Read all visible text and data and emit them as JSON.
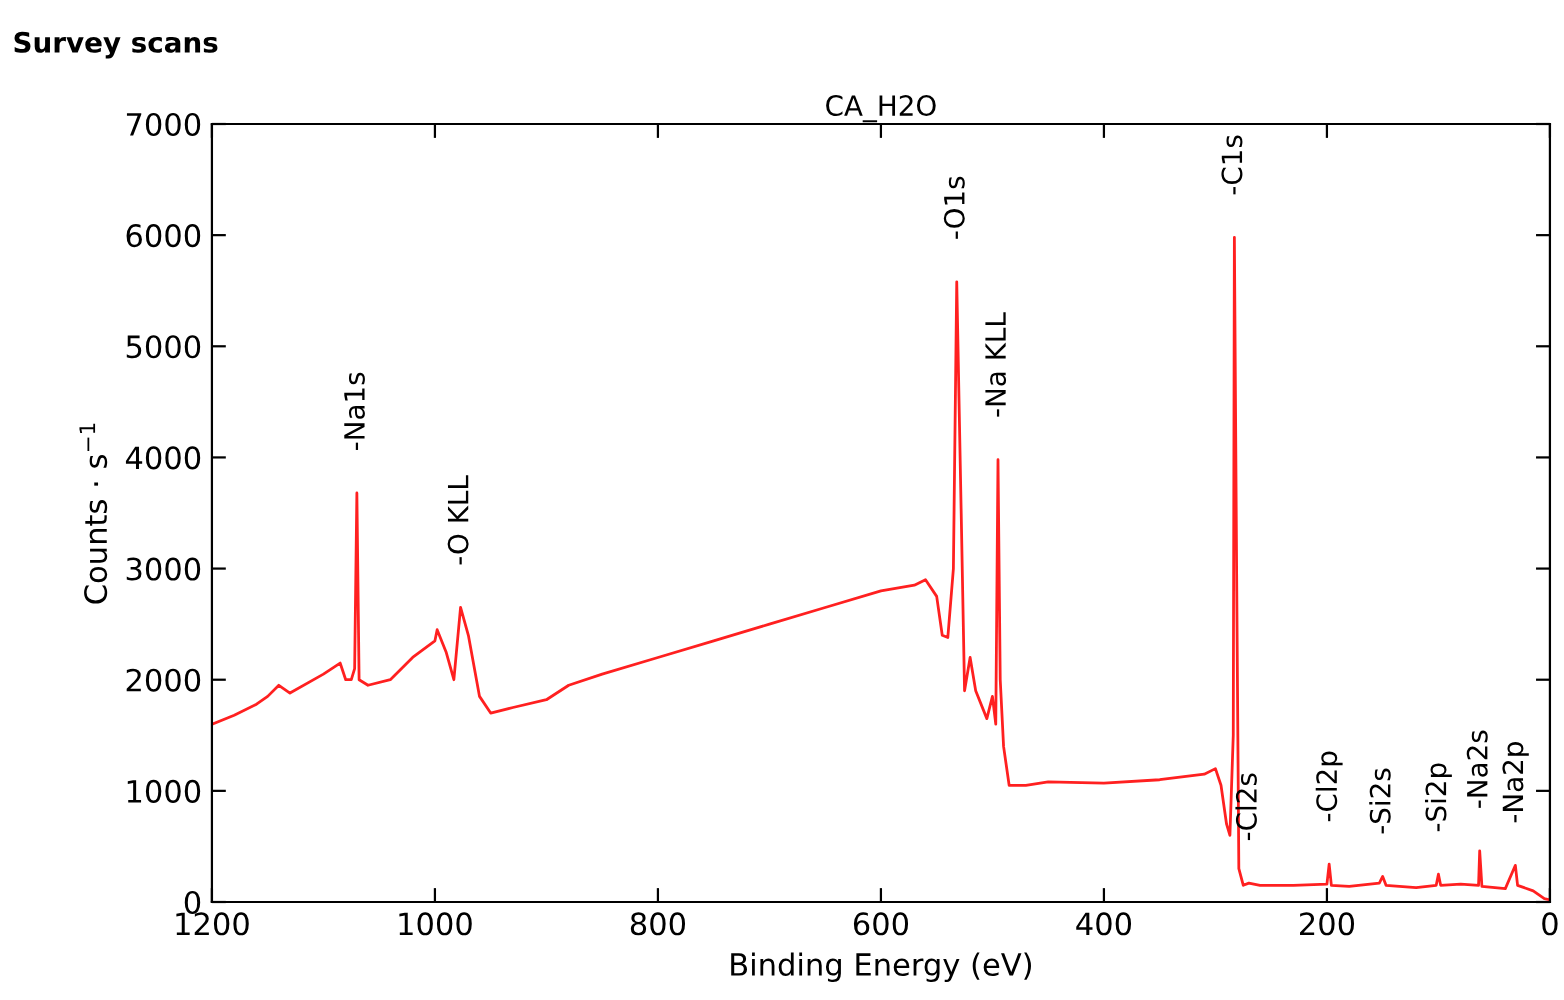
{
  "chart_data": {
    "type": "line",
    "title": "Survey scans",
    "subtitle": "CA_H2O",
    "xlabel": "Binding Energy (eV)",
    "ylabel": "Counts · s$^{−1}$",
    "xlim": [
      1200,
      0
    ],
    "xticks": [
      1200,
      1000,
      800,
      600,
      400,
      200,
      0
    ],
    "ylim": [
      0,
      7000
    ],
    "yticks": [
      0,
      1000,
      2000,
      3000,
      4000,
      5000,
      6000,
      7000
    ],
    "grid": false,
    "legend": false,
    "marker": "none",
    "line_style": "solid",
    "series": [
      {
        "color": "#ff2020",
        "x": [
          1200,
          1180,
          1160,
          1150,
          1140,
          1130,
          1100,
          1085,
          1080,
          1075,
          1072,
          1070,
          1068,
          1060,
          1040,
          1020,
          1000,
          998,
          990,
          983,
          977,
          970,
          960,
          950,
          930,
          900,
          880,
          850,
          800,
          750,
          700,
          650,
          600,
          570,
          560,
          550,
          545,
          540,
          535,
          532,
          528,
          525,
          520,
          515,
          505,
          500,
          497,
          495,
          493,
          490,
          485,
          470,
          450,
          400,
          350,
          310,
          300,
          295,
          290,
          287,
          284,
          283,
          281,
          279,
          275,
          270,
          260,
          230,
          200,
          198,
          196,
          180,
          153,
          150,
          147,
          120,
          102,
          100,
          98,
          80,
          64,
          63,
          61,
          40,
          31,
          29,
          15,
          5,
          0
        ],
        "values": [
          1600,
          1680,
          1780,
          1850,
          1950,
          1880,
          2050,
          2150,
          2000,
          2000,
          2100,
          3680,
          2000,
          1950,
          2000,
          2200,
          2350,
          2450,
          2250,
          2000,
          2650,
          2400,
          1850,
          1700,
          1750,
          1820,
          1950,
          2050,
          2200,
          2350,
          2500,
          2650,
          2800,
          2850,
          2900,
          2750,
          2400,
          2380,
          3000,
          5580,
          3500,
          1900,
          2200,
          1900,
          1650,
          1850,
          1600,
          3980,
          2000,
          1400,
          1050,
          1050,
          1080,
          1070,
          1100,
          1150,
          1200,
          1050,
          700,
          600,
          1500,
          5980,
          3000,
          300,
          150,
          170,
          150,
          150,
          160,
          340,
          150,
          140,
          170,
          230,
          150,
          130,
          150,
          250,
          150,
          160,
          150,
          460,
          140,
          120,
          330,
          150,
          100,
          30,
          20
        ]
      }
    ],
    "annotations": [
      {
        "text": "-Na1s",
        "x": 1070,
        "y": 3680
      },
      {
        "text": "-O KLL",
        "x": 977,
        "y": 2650
      },
      {
        "text": "-O1s",
        "x": 532,
        "y": 5580
      },
      {
        "text": "-Na KLL",
        "x": 495,
        "y": 3980
      },
      {
        "text": "-C1s",
        "x": 283,
        "y": 5980
      },
      {
        "text": "-Cl2s",
        "x": 270,
        "y": 170
      },
      {
        "text": "-Cl2p",
        "x": 198,
        "y": 340
      },
      {
        "text": "-Si2s",
        "x": 150,
        "y": 230
      },
      {
        "text": "-Si2p",
        "x": 100,
        "y": 250
      },
      {
        "text": "-Na2s",
        "x": 63,
        "y": 460
      },
      {
        "text": "-Na2p",
        "x": 31,
        "y": 330
      }
    ]
  }
}
